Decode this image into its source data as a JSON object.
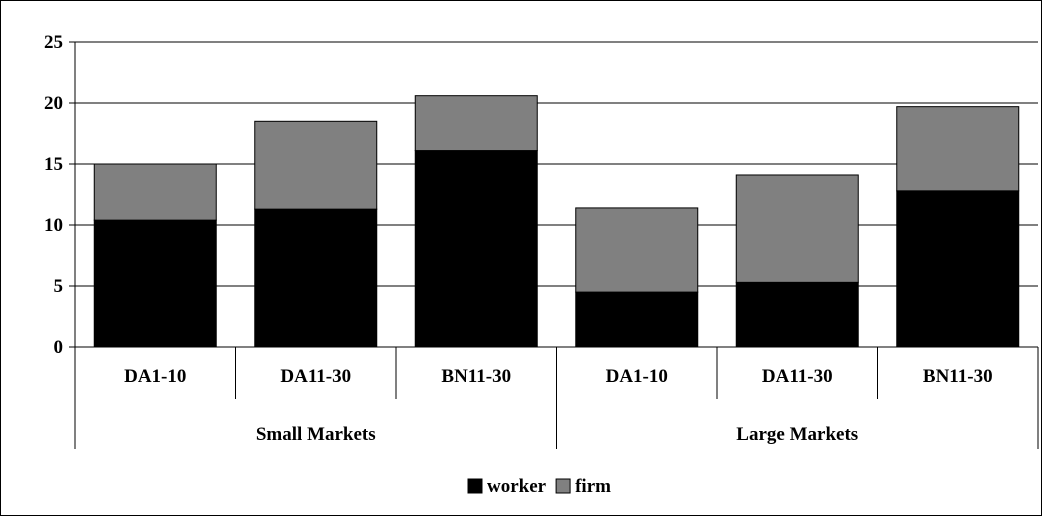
{
  "chart_data": {
    "type": "bar",
    "stacked": true,
    "categories": [
      "DA1-10",
      "DA11-30",
      "BN11-30",
      "DA1-10",
      "DA11-30",
      "BN11-30"
    ],
    "groups": [
      {
        "label": "Small Markets",
        "categories": [
          0,
          1,
          2
        ]
      },
      {
        "label": "Large Markets",
        "categories": [
          3,
          4,
          5
        ]
      }
    ],
    "series": [
      {
        "name": "worker",
        "color": "#000000",
        "values": [
          10.4,
          11.3,
          16.1,
          4.5,
          5.3,
          12.8
        ]
      },
      {
        "name": "firm",
        "color": "#808080",
        "values": [
          4.6,
          7.2,
          4.5,
          6.9,
          8.8,
          6.9
        ]
      }
    ],
    "yticks": [
      "0",
      "5",
      "10",
      "15",
      "20",
      "25"
    ],
    "ylim": [
      0,
      25
    ],
    "grid": true,
    "legend": "bottom-center",
    "title": "",
    "xlabel": "",
    "ylabel": ""
  }
}
